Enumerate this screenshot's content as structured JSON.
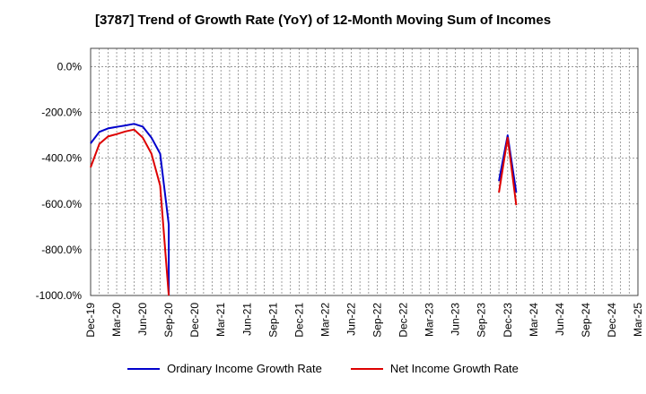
{
  "chart_data": {
    "type": "line",
    "title": "[3787]  Trend of Growth Rate (YoY) of 12-Month Moving Sum of Incomes",
    "xlabel": "",
    "ylabel": "",
    "ylim": [
      -1000,
      80
    ],
    "y_ticks": [
      0,
      -200,
      -400,
      -600,
      -800,
      -1000
    ],
    "y_tick_labels": [
      "0.0%",
      "-200.0%",
      "-400.0%",
      "-600.0%",
      "-800.0%",
      "-1000.0%"
    ],
    "x_ticks": [
      "Dec-19",
      "Mar-20",
      "Jun-20",
      "Sep-20",
      "Dec-20",
      "Mar-21",
      "Jun-21",
      "Sep-21",
      "Dec-21",
      "Mar-22",
      "Jun-22",
      "Sep-22",
      "Dec-22",
      "Mar-23",
      "Jun-23",
      "Sep-23",
      "Dec-23",
      "Mar-24",
      "Jun-24",
      "Sep-24",
      "Dec-24",
      "Mar-25"
    ],
    "grid": true,
    "legend_position": "bottom",
    "series": [
      {
        "name": "Ordinary Income Growth Rate",
        "color": "#0000cc",
        "segments": [
          [
            {
              "x": "Dec-19",
              "y": -335
            },
            {
              "x": "Jan-20",
              "y": -285
            },
            {
              "x": "Feb-20",
              "y": -270
            },
            {
              "x": "Mar-20",
              "y": -263
            },
            {
              "x": "Apr-20",
              "y": -257
            },
            {
              "x": "May-20",
              "y": -250
            },
            {
              "x": "Jun-20",
              "y": -262
            },
            {
              "x": "Jul-20",
              "y": -310
            },
            {
              "x": "Aug-20",
              "y": -380
            },
            {
              "x": "Sep-20",
              "y": -690
            },
            {
              "x": "Sep-20",
              "y": -1000
            }
          ],
          [
            {
              "x": "Nov-23",
              "y": -500
            },
            {
              "x": "Dec-23",
              "y": -300
            },
            {
              "x": "Jan-24",
              "y": -550
            }
          ]
        ]
      },
      {
        "name": "Net Income Growth Rate",
        "color": "#dd0000",
        "segments": [
          [
            {
              "x": "Dec-19",
              "y": -440
            },
            {
              "x": "Jan-20",
              "y": -338
            },
            {
              "x": "Feb-20",
              "y": -305
            },
            {
              "x": "Mar-20",
              "y": -295
            },
            {
              "x": "Apr-20",
              "y": -283
            },
            {
              "x": "May-20",
              "y": -275
            },
            {
              "x": "Jun-20",
              "y": -310
            },
            {
              "x": "Jul-20",
              "y": -380
            },
            {
              "x": "Aug-20",
              "y": -520
            },
            {
              "x": "Sep-20",
              "y": -1000
            }
          ],
          [
            {
              "x": "Nov-23",
              "y": -550
            },
            {
              "x": "Dec-23",
              "y": -310
            },
            {
              "x": "Jan-24",
              "y": -605
            }
          ]
        ]
      }
    ]
  }
}
